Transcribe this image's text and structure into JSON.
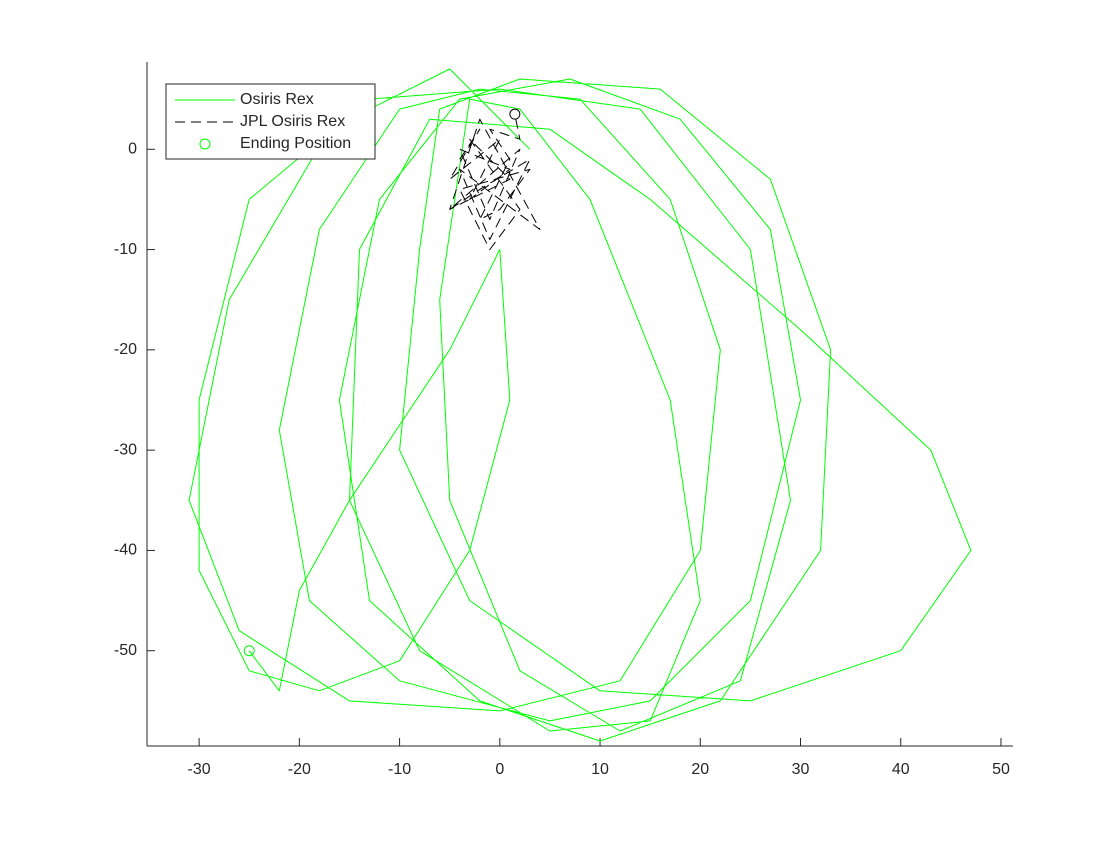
{
  "chart_data": {
    "type": "line",
    "xlim": [
      -35.2,
      51.2
    ],
    "ylim": [
      -59.5,
      8.7
    ],
    "xticks": [
      -30,
      -20,
      -10,
      0,
      10,
      20,
      30,
      40,
      50
    ],
    "yticks": [
      -50,
      -40,
      -30,
      -20,
      -10,
      0
    ],
    "legend": "upper left",
    "series": [
      {
        "name": "Osiris Rex",
        "color": "#00ff00",
        "style": "solid",
        "x": [
          3,
          -5,
          -17,
          -27,
          -31,
          -26,
          -15,
          0,
          12,
          20,
          22,
          17,
          8,
          -2,
          -10,
          -18,
          -22,
          -19,
          -10,
          5,
          15,
          25,
          30,
          27,
          18,
          7,
          -4,
          -12,
          -16,
          -13,
          -2,
          10,
          22,
          32,
          33,
          27,
          16,
          2,
          -6,
          -8,
          -10,
          -3,
          10,
          25,
          40,
          47,
          43,
          30,
          15,
          5,
          -7,
          -14,
          -15,
          -8,
          5,
          15,
          20,
          17,
          9,
          2,
          -3,
          -6,
          -5,
          2,
          12,
          24,
          29,
          25,
          14,
          0,
          -13,
          -25,
          -30,
          -30,
          -25,
          -18,
          -10,
          -3,
          1,
          0,
          -5,
          -15,
          -20,
          -22,
          -25
        ],
        "values": [
          0,
          8,
          2,
          -15,
          -35,
          -48,
          -55,
          -56,
          -53,
          -40,
          -20,
          -5,
          5,
          6,
          4,
          -8,
          -28,
          -45,
          -53,
          -57,
          -55,
          -45,
          -25,
          -8,
          3,
          7,
          5,
          -5,
          -25,
          -45,
          -55,
          -59,
          -55,
          -40,
          -20,
          -3,
          6,
          7,
          4,
          -10,
          -30,
          -45,
          -54,
          -55,
          -50,
          -40,
          -30,
          -18,
          -5,
          2,
          3,
          -10,
          -35,
          -50,
          -58,
          -57,
          -45,
          -25,
          -5,
          4,
          5,
          -15,
          -35,
          -52,
          -58,
          -53,
          -35,
          -10,
          4,
          6,
          5,
          -5,
          -25,
          -42,
          -52,
          -54,
          -51,
          -40,
          -25,
          -10,
          -20,
          -35,
          -44,
          -54,
          -50
        ]
      },
      {
        "name": "JPL Osiris Rex",
        "color": "#000000",
        "style": "dashed",
        "x": [
          -4,
          -2,
          -5,
          0,
          -3,
          1,
          -4,
          -1,
          2,
          -5,
          -2,
          3,
          -1,
          -4,
          0,
          4,
          -2,
          -5,
          1,
          -3,
          2,
          -1,
          -4,
          3,
          0,
          -2,
          1,
          -1,
          2,
          1.5
        ],
        "values": [
          -1,
          2,
          -3,
          1,
          -5,
          -2,
          0,
          -7,
          0,
          -6,
          -4,
          -1,
          -9,
          -2,
          -5,
          -8,
          3,
          -6,
          -3,
          1,
          -6,
          -10,
          -4,
          -2,
          -6,
          -7,
          -1,
          2,
          1,
          3.5
        ]
      },
      {
        "name": "Ending Position",
        "marker": "circle",
        "colors": [
          "#00ff00",
          "#000000"
        ],
        "x": [
          -25,
          1.5
        ],
        "values": [
          -50,
          3.5
        ]
      }
    ]
  }
}
